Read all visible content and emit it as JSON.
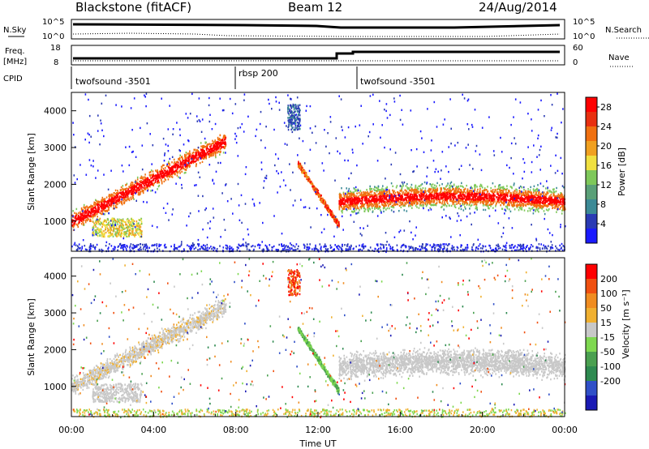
{
  "header": {
    "title": "Blackstone (fitACF)",
    "beam": "Beam 12",
    "date": "24/Aug/2014"
  },
  "params": {
    "nsky_label": "N.Sky",
    "nsearch_label": "N.Search",
    "freq_label_1": "Freq.",
    "freq_label_2": "[MHz]",
    "nave_label": "Nave",
    "cpid_label": "CPID",
    "nsky_ticks": [
      "10^5",
      "10^0"
    ],
    "nsearch_ticks": [
      "10^5",
      "10^0"
    ],
    "freq_ticks": [
      "18",
      "8"
    ],
    "nave_ticks": [
      "60",
      "0"
    ]
  },
  "cpid_segments": [
    {
      "label": "twofsound -3501",
      "start_hour": 0
    },
    {
      "label": "rbsp 200",
      "start_hour": 8
    },
    {
      "label": "twofsound -3501",
      "start_hour": 14
    }
  ],
  "colors": {
    "power_scale": [
      "#1a1aff",
      "#2a3ab4",
      "#3c8a96",
      "#5aa078",
      "#7ec85a",
      "#f0e040",
      "#f0a020",
      "#f07010",
      "#e83010",
      "#ff0000"
    ],
    "velocity_scale": [
      "#1a1ab4",
      "#3050c8",
      "#2e8a50",
      "#4aa050",
      "#7ed850",
      "#c8c8c8",
      "#f0b030",
      "#f08c20",
      "#f05010",
      "#ff0000"
    ],
    "ground_scatter": "#c8c8c8"
  },
  "chart_data": [
    {
      "type": "heatmap",
      "name": "power",
      "ylabel": "Slant Range [km]",
      "ylim": [
        180,
        4500
      ],
      "xlim_hours": [
        0,
        24
      ],
      "y_ticks": [
        1000,
        2000,
        3000,
        4000
      ],
      "colorbar_label": "Power [dB]",
      "colorbar_ticks": [
        4,
        8,
        12,
        16,
        20,
        24,
        28
      ],
      "colorbar_range": [
        0,
        30
      ]
    },
    {
      "type": "heatmap",
      "name": "velocity",
      "ylabel": "Slant Range [km]",
      "xlabel": "Time UT",
      "ylim": [
        180,
        4500
      ],
      "xlim_hours": [
        0,
        24
      ],
      "y_ticks": [
        1000,
        2000,
        3000,
        4000
      ],
      "x_tick_labels": [
        "00:00",
        "04:00",
        "08:00",
        "12:00",
        "16:00",
        "20:00",
        "00:00"
      ],
      "colorbar_label": "Velocity [m s⁻¹]",
      "colorbar_ticks": [
        "200",
        "100",
        "50",
        "15",
        "-15",
        "-50",
        "-100",
        "-200"
      ]
    }
  ]
}
